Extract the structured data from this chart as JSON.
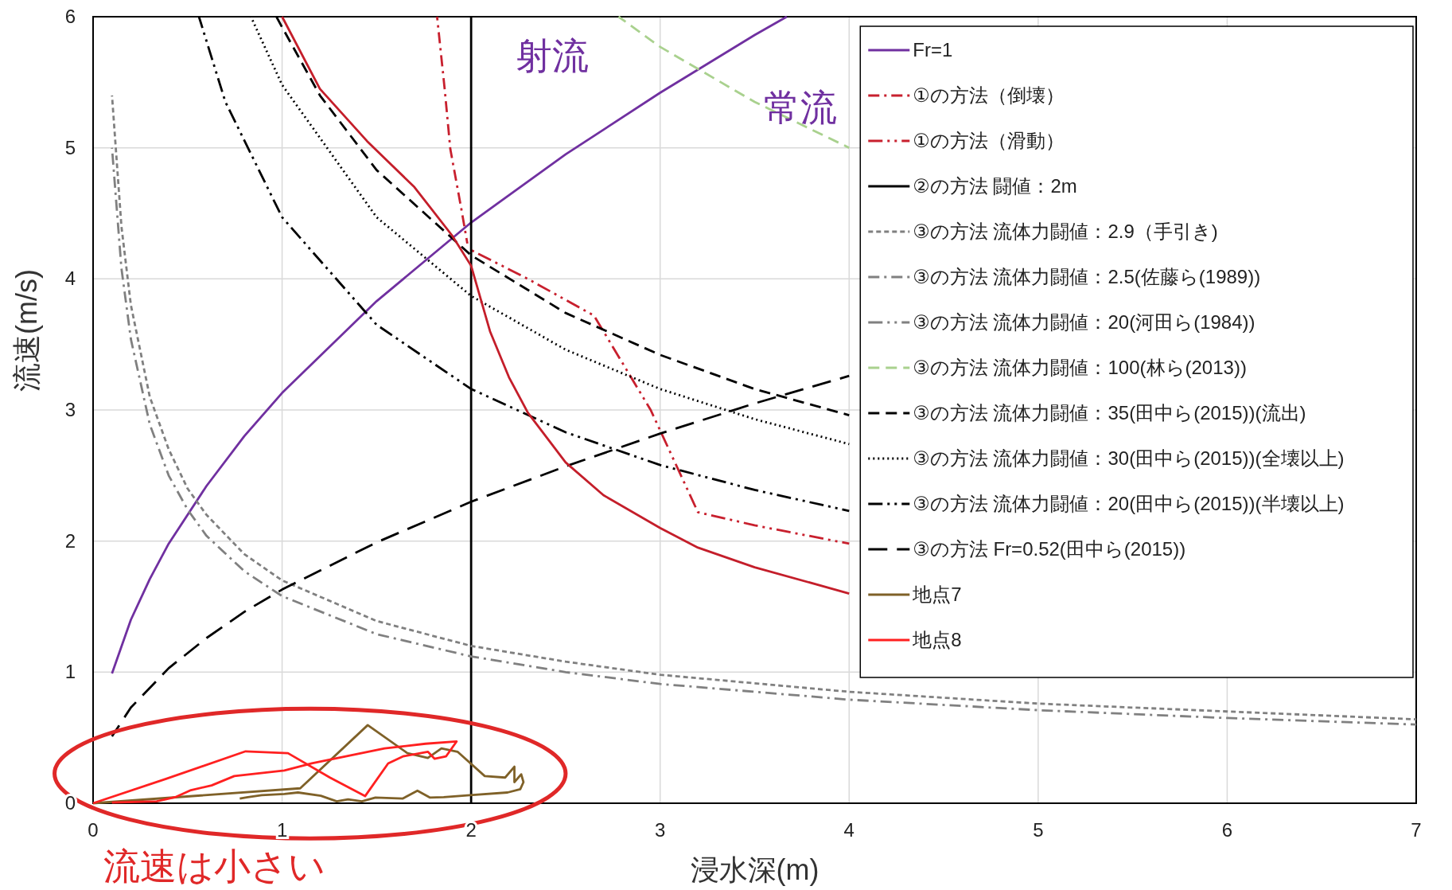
{
  "chart_data": {
    "type": "line",
    "xlabel": "浸水深(m)",
    "ylabel": "流速(m/s)",
    "xlim": [
      0,
      7
    ],
    "ylim": [
      0,
      6
    ],
    "xticks": [
      0,
      1,
      2,
      3,
      4,
      5,
      6,
      7
    ],
    "yticks": [
      0,
      1,
      2,
      3,
      4,
      5,
      6
    ],
    "grid": true,
    "legend": "top right",
    "series": [
      {
        "name": "Fr=1",
        "color": "#7030a0",
        "line_style": "solid",
        "x": [
          0.1,
          0.2,
          0.3,
          0.4,
          0.6,
          0.8,
          1.0,
          1.5,
          2.0,
          2.5,
          3.0,
          3.5,
          3.67
        ],
        "values": [
          0.99,
          1.4,
          1.71,
          1.98,
          2.42,
          2.8,
          3.13,
          3.83,
          4.43,
          4.95,
          5.42,
          5.86,
          6.0
        ]
      },
      {
        "name": "①の方法（倒壊）",
        "color": "#c8202e",
        "line_style": "dashdot",
        "x": [
          1.82,
          1.86,
          1.89,
          1.95,
          1.98
        ],
        "values": [
          6.0,
          5.45,
          4.99,
          4.52,
          4.27
        ]
      },
      {
        "name": "①の方法（滑動）",
        "color": "#c8202e",
        "line_style": "dashdotdot",
        "x": [
          2.0,
          2.3,
          2.65,
          2.95,
          3.2,
          3.5,
          4.0
        ],
        "values": [
          4.22,
          4.0,
          3.72,
          3.0,
          2.22,
          2.12,
          1.98
        ]
      },
      {
        "name": "②の方法 闘値：2m",
        "color": "#000000",
        "line_style": "solid",
        "x": [
          2,
          2
        ],
        "values": [
          0,
          6
        ]
      },
      {
        "name": "③の方法 流体力闘値：2.9（手引き)",
        "color": "#808080",
        "line_style": "shortdash",
        "x": [
          0.1,
          0.15,
          0.2,
          0.3,
          0.4,
          0.5,
          0.6,
          0.8,
          1.0,
          1.5,
          2.0,
          2.5,
          3.0,
          4.0,
          5.0,
          6.0,
          7.0
        ],
        "values": [
          5.4,
          4.4,
          3.8,
          3.1,
          2.7,
          2.4,
          2.2,
          1.9,
          1.7,
          1.39,
          1.2,
          1.08,
          0.98,
          0.85,
          0.76,
          0.7,
          0.64
        ]
      },
      {
        "name": "③の方法 流体力闘値：2.5(佐藤ら(1989))",
        "color": "#808080",
        "line_style": "dashdot",
        "x": [
          0.1,
          0.15,
          0.2,
          0.3,
          0.4,
          0.5,
          0.6,
          0.8,
          1.0,
          1.5,
          2.0,
          2.5,
          3.0,
          4.0,
          5.0,
          6.0,
          7.0
        ],
        "values": [
          5.0,
          4.08,
          3.54,
          2.89,
          2.5,
          2.24,
          2.04,
          1.77,
          1.58,
          1.29,
          1.12,
          1.0,
          0.91,
          0.79,
          0.71,
          0.65,
          0.6
        ]
      },
      {
        "name": "③の方法 流体力闘値：20(河田ら(1984))",
        "color": "#808080",
        "line_style": "dashdotdot"
      },
      {
        "name": "③の方法 流体力闘値：100(林ら(2013))",
        "color": "#a9d18e",
        "line_style": "dashed",
        "x": [
          2.78,
          3.0,
          3.5,
          4.0
        ],
        "values": [
          6.0,
          5.77,
          5.35,
          5.0
        ]
      },
      {
        "name": "③の方法 流体力闘値：35(田中ら(2015))(流出)",
        "color": "#000000",
        "line_style": "dashed",
        "x": [
          0.97,
          1.0,
          1.2,
          1.5,
          2.0,
          2.5,
          3.0,
          3.5,
          4.0
        ],
        "values": [
          6.0,
          5.92,
          5.4,
          4.83,
          4.18,
          3.74,
          3.42,
          3.16,
          2.96
        ]
      },
      {
        "name": "③の方法 流体力闘値：30(田中ら(2015))(全壊以上)",
        "color": "#000000",
        "line_style": "dotted",
        "x": [
          0.835,
          1.0,
          1.5,
          2.0,
          2.5,
          3.0,
          3.5,
          4.0
        ],
        "values": [
          6.0,
          5.48,
          4.47,
          3.87,
          3.46,
          3.16,
          2.93,
          2.74
        ]
      },
      {
        "name": "③の方法 流体力闘値：20(田中ら(2015))(半壊以上)",
        "color": "#000000",
        "line_style": "dashdotdot",
        "x": [
          0.56,
          0.7,
          1.0,
          1.5,
          2.0,
          2.5,
          3.0,
          3.5,
          4.0
        ],
        "values": [
          6.0,
          5.35,
          4.47,
          3.65,
          3.16,
          2.83,
          2.58,
          2.39,
          2.23
        ]
      },
      {
        "name": "③の方法 Fr=0.52(田中ら(2015))",
        "color": "#000000",
        "line_style": "longdash",
        "x": [
          0.1,
          0.2,
          0.4,
          0.6,
          0.8,
          1.0,
          1.5,
          2.0,
          2.5,
          3.0,
          3.5,
          4.0
        ],
        "values": [
          0.51,
          0.73,
          1.03,
          1.26,
          1.46,
          1.63,
          1.99,
          2.3,
          2.57,
          2.82,
          3.05,
          3.26
        ]
      },
      {
        "name": "地点7",
        "color": "#7f6128",
        "line_style": "solid",
        "x": [
          0,
          1.096,
          1.453,
          1.663,
          1.771,
          1.843,
          1.928,
          2.072,
          2.18,
          2.229,
          2.229,
          2.265,
          2.277,
          2.26,
          2.193,
          1.994,
          1.855,
          1.783,
          1.716,
          1.639,
          1.494,
          1.422,
          1.349,
          1.289,
          1.205,
          1.084,
          1.012,
          0.892,
          0.819,
          0.776
        ],
        "values": [
          0,
          0.114,
          0.596,
          0.382,
          0.346,
          0.418,
          0.393,
          0.207,
          0.196,
          0.279,
          0.161,
          0.221,
          0.161,
          0.107,
          0.082,
          0.061,
          0.046,
          0.043,
          0.096,
          0.036,
          0.043,
          0.014,
          0.029,
          0.014,
          0.057,
          0.082,
          0.071,
          0.061,
          0.046,
          0.036
        ]
      },
      {
        "name": "地点8",
        "color": "#ff2020",
        "line_style": "solid",
        "x": [
          0,
          0.386,
          0.807,
          1.031,
          1.253,
          1.439,
          1.561,
          1.639,
          1.771,
          1.807,
          1.867,
          1.923,
          1.759,
          1.542,
          1.157,
          1.012,
          0.747,
          0.627,
          0.518,
          0.434,
          0.337,
          0.1
        ],
        "values": [
          0,
          0.186,
          0.396,
          0.382,
          0.196,
          0.054,
          0.304,
          0.357,
          0.393,
          0.339,
          0.357,
          0.471,
          0.454,
          0.418,
          0.304,
          0.25,
          0.207,
          0.136,
          0.1,
          0.046,
          0.014,
          0.005
        ]
      },
      {
        "color": "#c41e2a",
        "line_style": "solid",
        "x": [
          1.0,
          1.2,
          1.45,
          1.7,
          1.9,
          2.0,
          2.1,
          2.2,
          2.3,
          2.5,
          2.7,
          3.0,
          3.2,
          3.5,
          4.0
        ],
        "values": [
          6.0,
          5.45,
          5.05,
          4.7,
          4.33,
          4.1,
          3.6,
          3.25,
          2.98,
          2.6,
          2.35,
          2.1,
          1.95,
          1.8,
          1.6
        ]
      }
    ],
    "annotations": [
      "射流",
      "常流",
      "流速は小さい"
    ]
  }
}
